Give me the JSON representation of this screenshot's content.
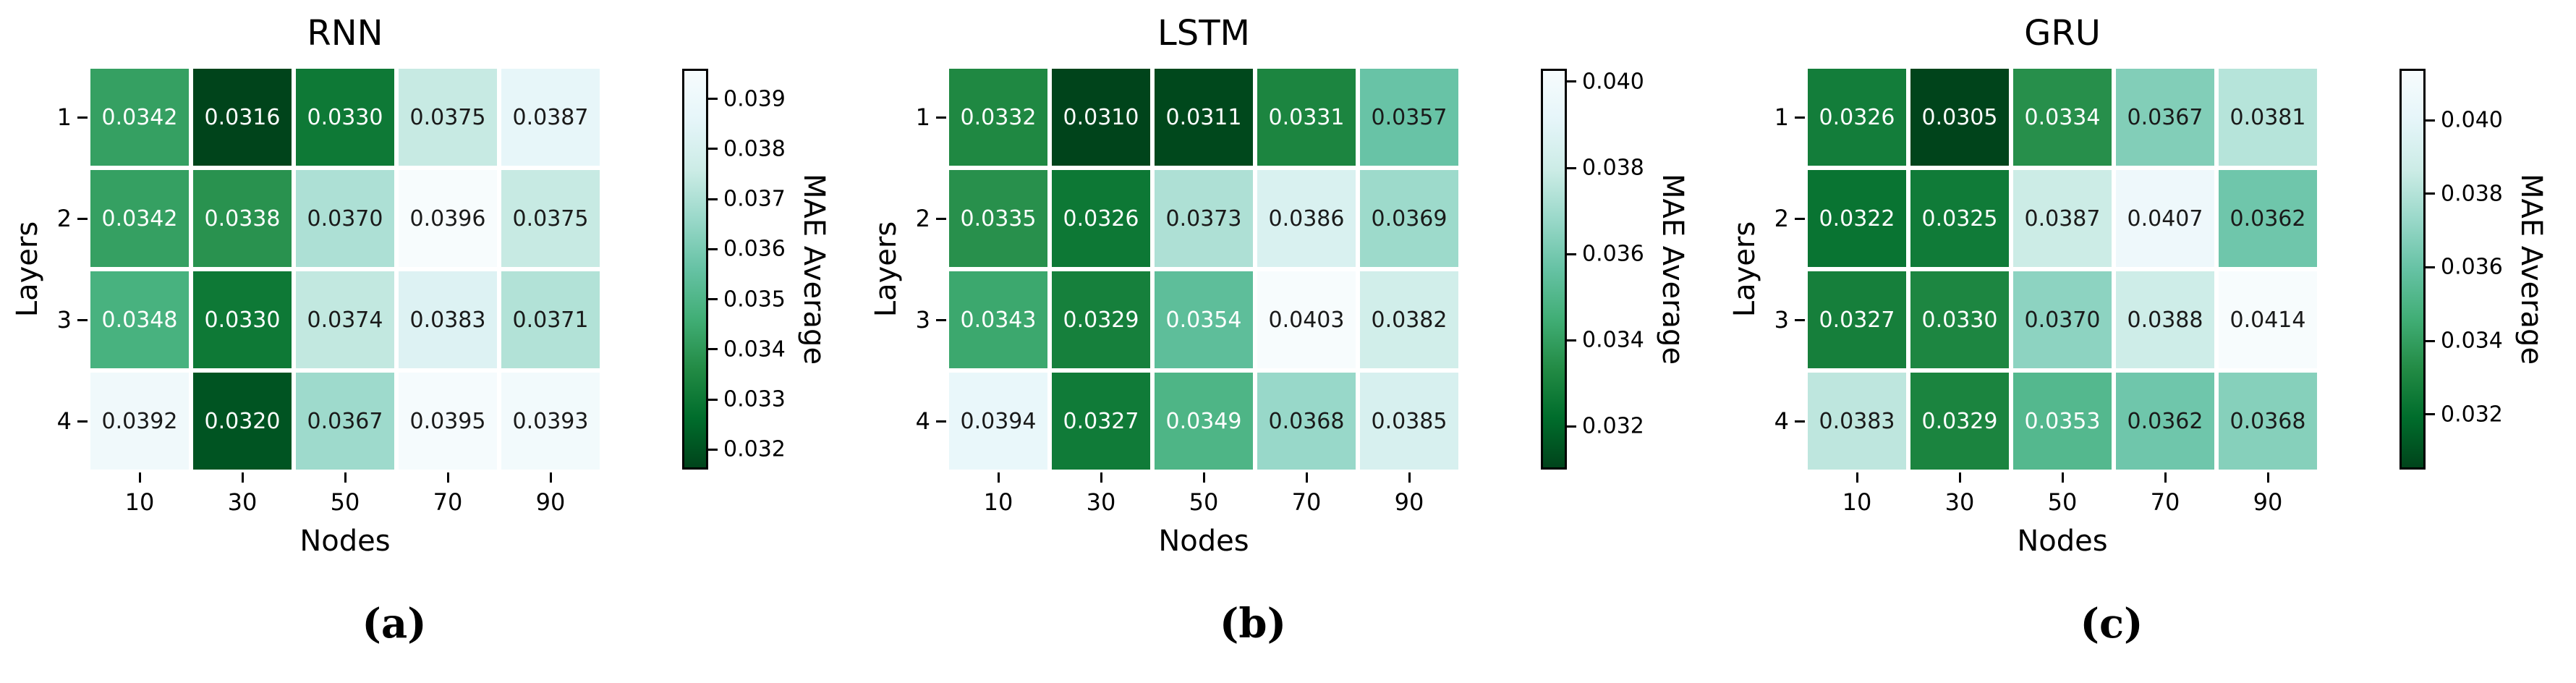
{
  "colormap": {
    "name": "BuGn_r",
    "stops_light_to_dark": [
      "#f7fcfd",
      "#e5f5f9",
      "#ccece6",
      "#99d8c9",
      "#66c2a4",
      "#41ae76",
      "#238b45",
      "#006d2c",
      "#00441b"
    ]
  },
  "text_colors": {
    "annotation_on_dark": "#ffffff",
    "annotation_on_light": "#1a1a1a",
    "axis_text": "#000000"
  },
  "chart_data": [
    {
      "type": "heatmap",
      "title": "RNN",
      "caption": "(a)",
      "xlabel": "Nodes",
      "ylabel": "Layers",
      "colorbar_label": "MAE Average",
      "x_tick_labels": [
        "10",
        "30",
        "50",
        "70",
        "90"
      ],
      "y_tick_labels": [
        "1",
        "2",
        "3",
        "4"
      ],
      "values": [
        [
          0.0342,
          0.0316,
          0.033,
          0.0375,
          0.0387
        ],
        [
          0.0342,
          0.0338,
          0.037,
          0.0396,
          0.0375
        ],
        [
          0.0348,
          0.033,
          0.0374,
          0.0383,
          0.0371
        ],
        [
          0.0392,
          0.032,
          0.0367,
          0.0395,
          0.0393
        ]
      ],
      "vmin": 0.0316,
      "vmax": 0.0396,
      "colorbar_tick_labels": [
        "0.039",
        "0.038",
        "0.037",
        "0.036",
        "0.035",
        "0.034",
        "0.033",
        "0.032"
      ]
    },
    {
      "type": "heatmap",
      "title": "LSTM",
      "caption": "(b)",
      "xlabel": "Nodes",
      "ylabel": "Layers",
      "colorbar_label": "MAE Average",
      "x_tick_labels": [
        "10",
        "30",
        "50",
        "70",
        "90"
      ],
      "y_tick_labels": [
        "1",
        "2",
        "3",
        "4"
      ],
      "values": [
        [
          0.0332,
          0.031,
          0.0311,
          0.0331,
          0.0357
        ],
        [
          0.0335,
          0.0326,
          0.0373,
          0.0386,
          0.0369
        ],
        [
          0.0343,
          0.0329,
          0.0354,
          0.0403,
          0.0382
        ],
        [
          0.0394,
          0.0327,
          0.0349,
          0.0368,
          0.0385
        ]
      ],
      "vmin": 0.031,
      "vmax": 0.0403,
      "colorbar_tick_labels": [
        "0.040",
        "0.038",
        "0.036",
        "0.034",
        "0.032"
      ]
    },
    {
      "type": "heatmap",
      "title": "GRU",
      "caption": "(c)",
      "xlabel": "Nodes",
      "ylabel": "Layers",
      "colorbar_label": "MAE Average",
      "x_tick_labels": [
        "10",
        "30",
        "50",
        "70",
        "90"
      ],
      "y_tick_labels": [
        "1",
        "2",
        "3",
        "4"
      ],
      "values": [
        [
          0.0326,
          0.0305,
          0.0334,
          0.0367,
          0.0381
        ],
        [
          0.0322,
          0.0325,
          0.0387,
          0.0407,
          0.0362
        ],
        [
          0.0327,
          0.033,
          0.037,
          0.0388,
          0.0414
        ],
        [
          0.0383,
          0.0329,
          0.0353,
          0.0362,
          0.0368
        ]
      ],
      "vmin": 0.0305,
      "vmax": 0.0414,
      "colorbar_tick_labels": [
        "0.040",
        "0.038",
        "0.036",
        "0.034",
        "0.032"
      ]
    }
  ]
}
